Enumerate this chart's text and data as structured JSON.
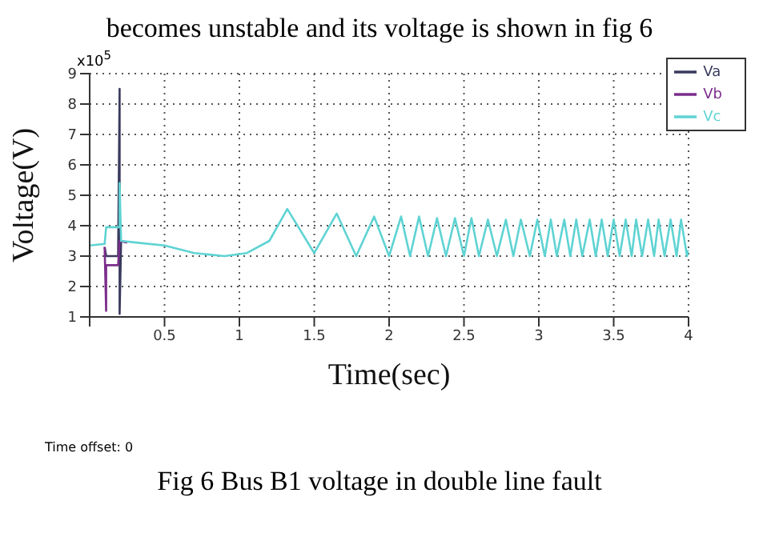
{
  "chart_data": {
    "type": "line",
    "title": "Fig 6 Bus B1 voltage in double line fault",
    "xlabel": "Time(sec)",
    "ylabel": "Voltage(V)",
    "annotations": [
      "becomes unstable and its voltage is shown in fig 6",
      "x10$^{5}$",
      "Time offset: 0"
    ],
    "xlim": [
      0,
      4
    ],
    "xticks": [
      {
        "value": 0,
        "label": null
      },
      0.5,
      1,
      1.5,
      2,
      2.5,
      3,
      3.5,
      4
    ],
    "ylim": [
      1,
      9
    ],
    "yticks": [
      1,
      2,
      3,
      4,
      5,
      6,
      7,
      8,
      9
    ],
    "grid": true,
    "legend": "top right",
    "marker": "none",
    "line_style": "solid",
    "series": [
      {
        "name": "Va",
        "color": "#3a3a5e",
        "x": [
          0.1,
          0.11,
          0.19,
          0.2,
          0.2,
          0.21,
          0.25
        ],
        "values": [
          3.3,
          3.0,
          3.0,
          8.5,
          1.1,
          3.5,
          3.45
        ]
      },
      {
        "name": "Vb",
        "color": "#7b2d8b",
        "x": [
          0.1,
          0.11,
          0.11,
          0.11,
          0.19,
          0.2,
          0.25
        ],
        "values": [
          3.3,
          1.2,
          2.3,
          2.7,
          2.7,
          3.5,
          3.45
        ]
      },
      {
        "name": "Vc",
        "color": "#5fd3d3",
        "x": [
          0,
          0.1,
          0.11,
          0.2,
          0.2,
          0.21,
          0.3,
          0.5,
          0.7,
          0.9,
          1.05,
          1.2,
          1.32,
          1.5,
          1.65,
          1.78,
          1.9,
          2.0,
          2.08,
          2.14,
          2.2,
          2.26,
          2.32,
          2.38,
          2.44,
          2.5,
          2.55,
          2.6,
          2.66,
          2.72,
          2.78,
          2.83,
          2.88,
          2.94,
          2.99,
          3.04,
          3.08,
          3.12,
          3.17,
          3.21,
          3.25,
          3.29,
          3.34,
          3.38,
          3.42,
          3.46,
          3.5,
          3.54,
          3.58,
          3.62,
          3.65,
          3.69,
          3.73,
          3.77,
          3.8,
          3.84,
          3.88,
          3.92,
          3.95,
          3.99,
          4.0
        ],
        "values": [
          3.35,
          3.4,
          3.95,
          3.95,
          5.4,
          3.5,
          3.45,
          3.35,
          3.1,
          3.0,
          3.1,
          3.5,
          4.55,
          3.1,
          4.4,
          3.0,
          4.3,
          3.0,
          4.3,
          3.0,
          4.3,
          3.0,
          4.25,
          3.0,
          4.25,
          3.0,
          4.25,
          3.0,
          4.2,
          3.0,
          4.2,
          3.0,
          4.2,
          3.0,
          4.2,
          3.0,
          4.2,
          3.0,
          4.2,
          3.0,
          4.2,
          3.0,
          4.2,
          3.0,
          4.2,
          3.0,
          4.2,
          3.0,
          4.2,
          3.0,
          4.2,
          3.0,
          4.2,
          3.0,
          4.2,
          3.0,
          4.2,
          3.0,
          4.2,
          3.0,
          3.2
        ]
      }
    ]
  }
}
